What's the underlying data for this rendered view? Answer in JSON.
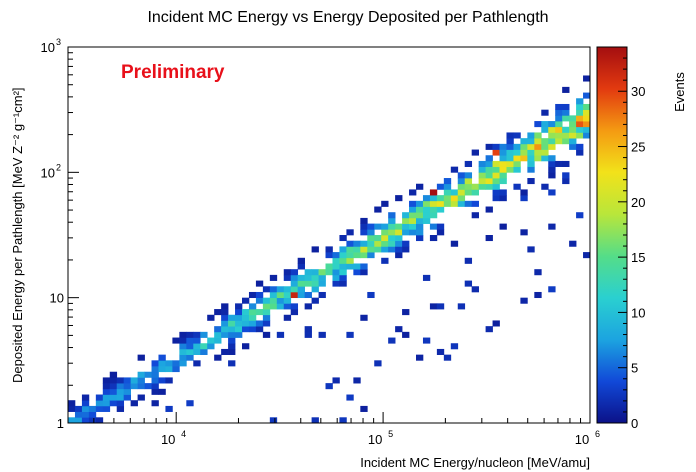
{
  "chart_data": {
    "type": "heatmap",
    "title": "Incident MC Energy vs Energy Deposited per Pathlength",
    "xlabel": "Incident MC Energy/nucleon [MeV/amu]",
    "ylabel": "Deposited Energy per Pathlength [MeV Z⁻² g⁻¹cm²]",
    "x_scale": "log",
    "y_scale": "log",
    "xlim": [
      3000,
      1000000
    ],
    "ylim": [
      1,
      1000
    ],
    "x_ticks": [
      {
        "value": 10000,
        "base": "10",
        "exp": "4"
      },
      {
        "value": 100000,
        "base": "10",
        "exp": "5"
      },
      {
        "value": 1000000,
        "base": "10",
        "exp": "6"
      }
    ],
    "y_ticks": [
      {
        "value": 1,
        "label": "1"
      },
      {
        "value": 10,
        "label": "10"
      },
      {
        "value": 100,
        "base": "10",
        "exp": "2"
      },
      {
        "value": 1000,
        "base": "10",
        "exp": "3"
      }
    ],
    "annotation": "Preliminary",
    "colorbar": {
      "label": "Events",
      "min": 0,
      "max": 34,
      "ticks": [
        "0",
        "5",
        "10",
        "15",
        "20",
        "25",
        "30"
      ],
      "palette": [
        "#0b1188",
        "#1149d8",
        "#1ca4e0",
        "#2ad0d0",
        "#55dd88",
        "#b9e63a",
        "#f2e21a",
        "#f49a12",
        "#e23a10",
        "#a40e10"
      ]
    },
    "band": {
      "description_units": "log10 coordinates of the main correlation band",
      "center_start": [
        3.5,
        0.02
      ],
      "center_end": [
        5.95,
        2.4
      ],
      "peak_counts_start": 5,
      "peak_counts_end": 20
    },
    "hot_spots": [
      {
        "x": 38000,
        "y": 10.5,
        "events": 32
      },
      {
        "x": 170000,
        "y": 70,
        "events": 34
      },
      {
        "x": 350000,
        "y": 150,
        "events": 30
      }
    ]
  }
}
